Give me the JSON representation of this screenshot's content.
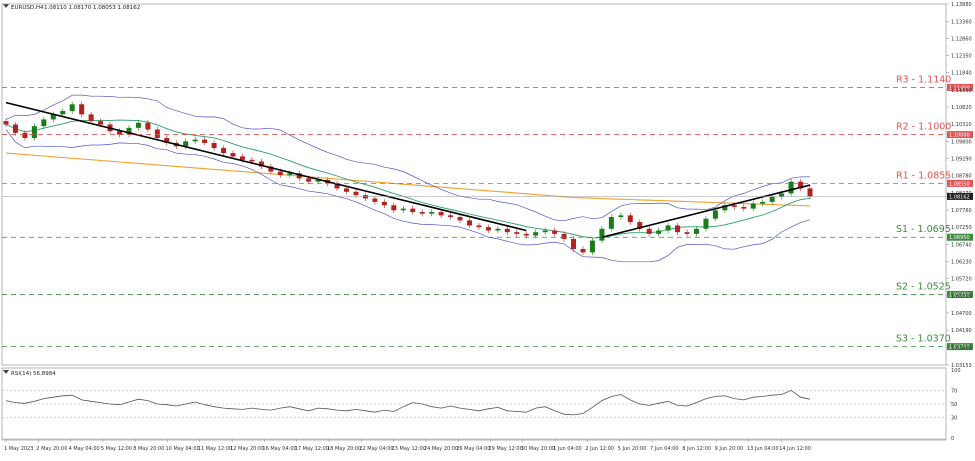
{
  "header": {
    "symbol": "EURUSD,H4",
    "ohlc": "1.08110 1.08170 1.08053 1.08162"
  },
  "colors": {
    "up_candle": "#1a7d1a",
    "down_candle": "#b22222",
    "resistance_line": "#e05555",
    "support_line": "#3c8c3c",
    "ma_200": "#f0a030",
    "ma_50": "#2a9e6a",
    "bollinger": "#5555c8",
    "trendline": "#000000",
    "rsi_line": "#555555"
  },
  "chart_data": [
    {
      "type": "line",
      "title": "EURUSD,H4",
      "ylim": [
        1.03153,
        1.1388
      ],
      "y_ticks": [
        "1.13880",
        "1.13360",
        "1.12860",
        "1.12350",
        "1.11840",
        "1.11330",
        "1.10820",
        "1.10310",
        "1.09800",
        "1.09290",
        "1.08780",
        "1.08270",
        "1.07760",
        "1.07250",
        "1.06740",
        "1.06230",
        "1.05720",
        "1.05210",
        "1.04700",
        "1.04190",
        "1.03680",
        "1.03153"
      ],
      "x_ticks": [
        "1 May 2023",
        "2 May 20:00",
        "4 May 04:00",
        "5 May 12:00",
        "8 May 20:00",
        "10 May 04:00",
        "11 May 12:00",
        "12 May 20:00",
        "16 May 04:00",
        "17 May 12:00",
        "18 May 20:00",
        "22 May 04:00",
        "23 May 12:00",
        "24 May 20:00",
        "26 May 04:00",
        "29 May 12:00",
        "30 May 20:00",
        "1 Jun 04:00",
        "2 Jun 12:00",
        "5 Jun 20:00",
        "7 Jun 04:00",
        "8 Jun 12:00",
        "9 Jun 20:00",
        "13 Jun 04:00",
        "14 Jun 12:00"
      ],
      "levels": [
        {
          "label": "R3 - 1.1140",
          "tag": "1.11400",
          "value": 1.114,
          "kind": "resistance"
        },
        {
          "label": "R2 - 1.1000",
          "tag": "1.10000",
          "value": 1.1,
          "kind": "resistance"
        },
        {
          "label": "R1 - 1.0855",
          "tag": "1.08550",
          "value": 1.0855,
          "kind": "resistance"
        },
        {
          "label": "S1 - 1.0695",
          "tag": "1.06950",
          "value": 1.0695,
          "kind": "support"
        },
        {
          "label": "S2 - 1.0525",
          "tag": "1.05250",
          "value": 1.0525,
          "kind": "support"
        },
        {
          "label": "S3 - 1.0370",
          "tag": "1.03700",
          "value": 1.037,
          "kind": "support"
        }
      ],
      "current_price": {
        "value": 1.08162,
        "tag": "1.08162"
      },
      "candles_close": [
        1.103,
        1.1005,
        1.099,
        1.1025,
        1.1045,
        1.106,
        1.107,
        1.109,
        1.106,
        1.104,
        1.103,
        1.101,
        1.1,
        1.102,
        1.1035,
        1.1015,
        1.099,
        1.0975,
        1.0965,
        1.098,
        1.0985,
        1.0975,
        1.096,
        1.0945,
        1.0935,
        1.0925,
        1.092,
        1.0905,
        1.089,
        1.088,
        1.0885,
        1.087,
        1.086,
        1.0865,
        1.0855,
        1.084,
        1.083,
        1.082,
        1.081,
        1.08,
        1.079,
        1.0775,
        1.078,
        1.077,
        1.0765,
        1.077,
        1.076,
        1.0755,
        1.0745,
        1.073,
        1.0725,
        1.0715,
        1.072,
        1.071,
        1.0705,
        1.07,
        1.071,
        1.0715,
        1.0705,
        1.069,
        1.066,
        1.065,
        1.0685,
        1.072,
        1.0755,
        1.076,
        1.074,
        1.072,
        1.0705,
        1.0715,
        1.073,
        1.071,
        1.0705,
        1.072,
        1.075,
        1.0775,
        1.079,
        1.0785,
        1.078,
        1.0795,
        1.08,
        1.0815,
        1.0825,
        1.086,
        1.084,
        1.0816
      ],
      "trendlines": [
        {
          "from": [
            0,
            1.1095
          ],
          "to": [
            55,
            1.0715
          ]
        },
        {
          "from": [
            63,
            1.0695
          ],
          "to": [
            85,
            1.085
          ]
        }
      ]
    },
    {
      "type": "line",
      "title": "RSI(14) 56.8984",
      "ylim": [
        0,
        100
      ],
      "y_ticks": [
        "100",
        "70",
        "50",
        "30",
        "0"
      ],
      "levels": [
        70,
        50,
        30
      ],
      "values": [
        55,
        52,
        51,
        54,
        58,
        60,
        62,
        63,
        56,
        54,
        52,
        50,
        49,
        53,
        57,
        55,
        50,
        49,
        47,
        50,
        53,
        49,
        46,
        44,
        43,
        42,
        44,
        42,
        41,
        44,
        46,
        43,
        40,
        44,
        43,
        41,
        40,
        42,
        40,
        38,
        41,
        39,
        46,
        52,
        50,
        46,
        44,
        47,
        44,
        42,
        40,
        43,
        45,
        40,
        39,
        38,
        44,
        46,
        40,
        35,
        34,
        36,
        45,
        55,
        61,
        64,
        56,
        50,
        48,
        51,
        54,
        48,
        47,
        52,
        58,
        61,
        62,
        58,
        56,
        60,
        61,
        63,
        64,
        70,
        60,
        57
      ]
    }
  ]
}
